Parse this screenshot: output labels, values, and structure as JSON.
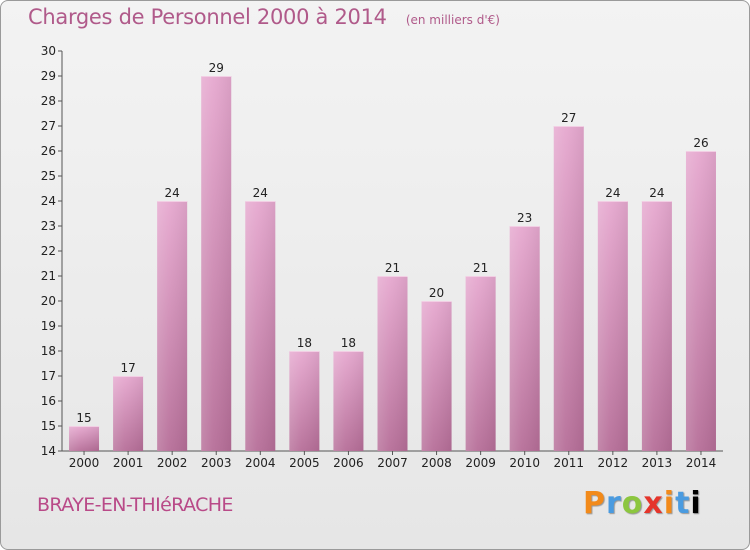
{
  "header": {
    "title": "Charges de Personnel 2000 à 2014",
    "unit": "(en milliers d'€)"
  },
  "footer": {
    "commune": "BRAYE-EN-THIéRACHE",
    "logo_letters": [
      "P",
      "r",
      "o",
      "x",
      "i",
      "t",
      "i"
    ]
  },
  "colors": {
    "bar_top": "#e6a8cf",
    "bar_bottom": "#b66e98",
    "title": "#b05a8a"
  },
  "chart_data": {
    "type": "bar",
    "title": "Charges de Personnel 2000 à 2014",
    "subtitle": "(en milliers d'€)",
    "xlabel": "",
    "ylabel": "",
    "categories": [
      "2000",
      "2001",
      "2002",
      "2003",
      "2004",
      "2005",
      "2006",
      "2007",
      "2008",
      "2009",
      "2010",
      "2011",
      "2012",
      "2013",
      "2014"
    ],
    "values": [
      15,
      17,
      24,
      29,
      24,
      18,
      18,
      21,
      20,
      21,
      23,
      27,
      24,
      24,
      26
    ],
    "ylim": [
      14,
      30
    ],
    "yticks": [
      14,
      15,
      16,
      17,
      18,
      19,
      20,
      21,
      22,
      23,
      24,
      25,
      26,
      27,
      28,
      29,
      30
    ],
    "grid": false,
    "legend": "none"
  }
}
